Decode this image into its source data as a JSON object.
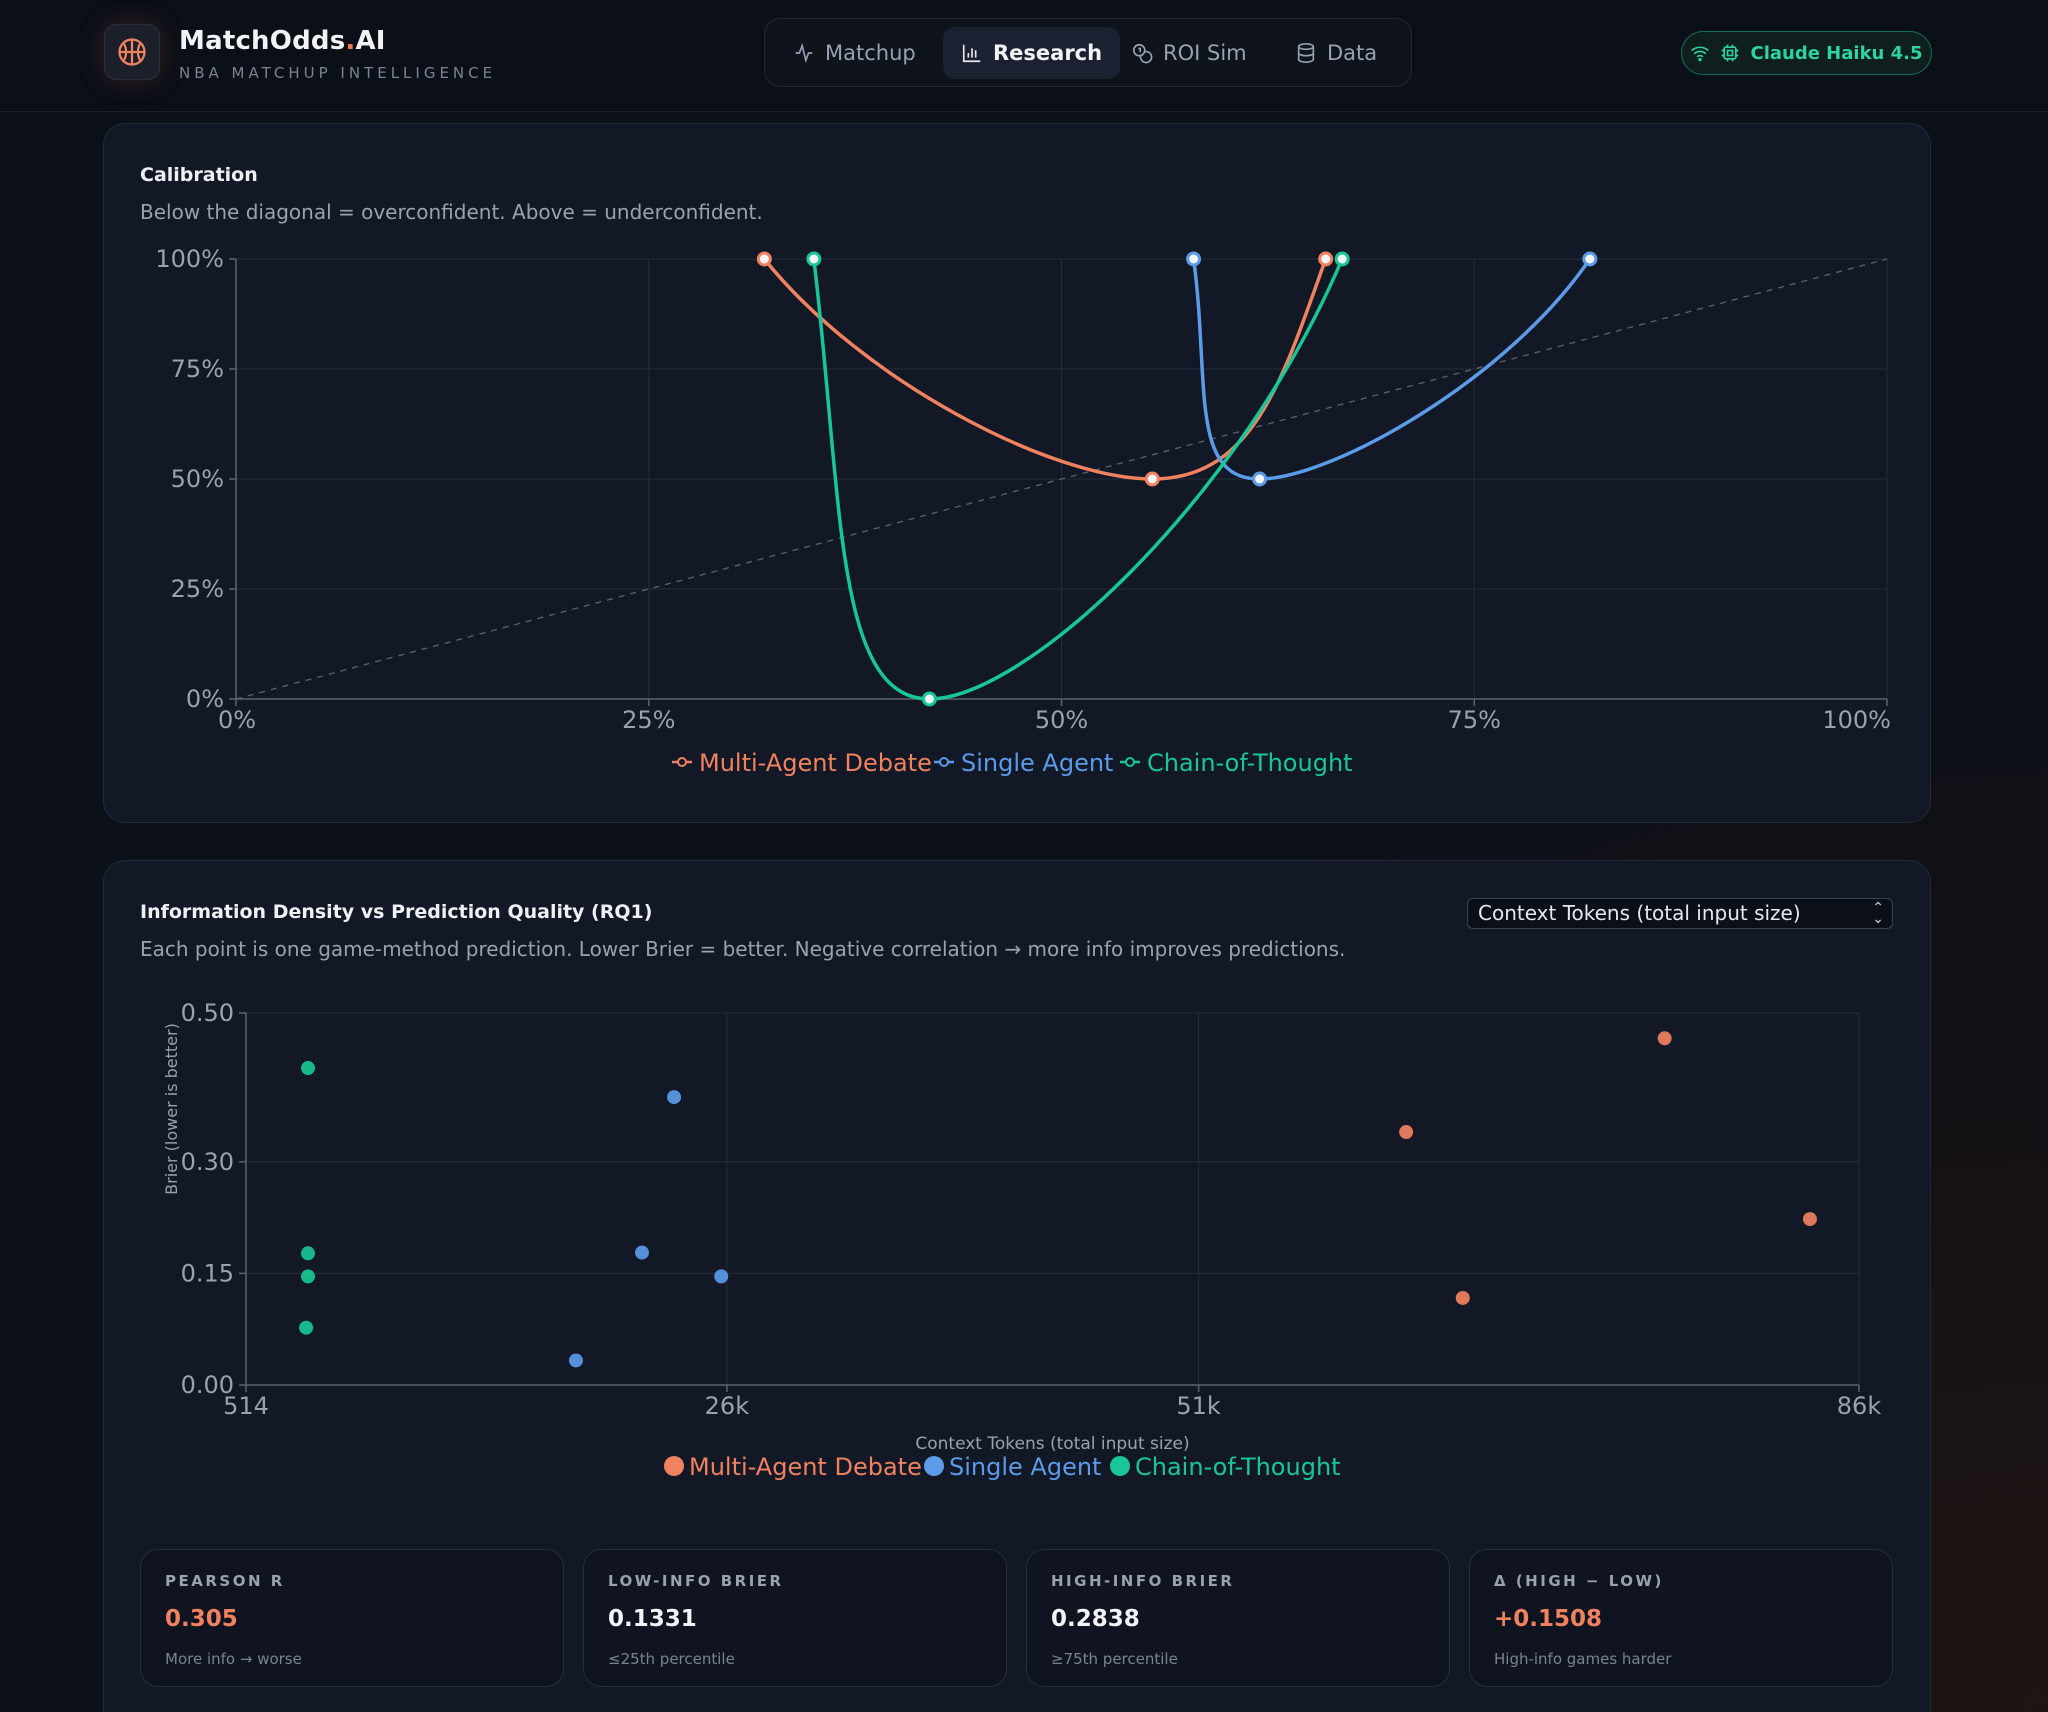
{
  "app": {
    "title_main": "MatchOdds",
    "title_dot": ".",
    "title_ai": "AI",
    "subtitle": "NBA MATCHUP INTELLIGENCE"
  },
  "nav": {
    "items": [
      {
        "label": "Matchup",
        "icon": "activity-icon",
        "active": false
      },
      {
        "label": "Research",
        "icon": "bar-chart-icon",
        "active": true
      },
      {
        "label": "ROI Sim",
        "icon": "coins-icon",
        "active": false
      },
      {
        "label": "Data",
        "icon": "database-icon",
        "active": false
      }
    ]
  },
  "model_badge": {
    "label": "Claude Haiku 4.5",
    "color": "#2ed3a4"
  },
  "colors": {
    "debate": "#f0825f",
    "single": "#5b9be8",
    "cot": "#19c796"
  },
  "calibration": {
    "title": "Calibration",
    "subtitle": "Below the diagonal = overconfident. Above = underconfident.",
    "chart_data": {
      "type": "line",
      "xlim": [
        0,
        100
      ],
      "ylim": [
        0,
        100
      ],
      "x_ticks": [
        "0%",
        "25%",
        "50%",
        "75%",
        "100%"
      ],
      "y_ticks": [
        "0%",
        "25%",
        "50%",
        "75%",
        "100%"
      ],
      "diagonal": true,
      "grid": true,
      "legend_position": "bottom-center",
      "series": [
        {
          "name": "Multi-Agent Debate",
          "color": "#f0825f",
          "points": [
            [
              32,
              100
            ],
            [
              55.5,
              50
            ],
            [
              66,
              100
            ]
          ]
        },
        {
          "name": "Single Agent",
          "color": "#5b9be8",
          "points": [
            [
              58,
              100
            ],
            [
              62,
              50
            ],
            [
              82,
              100
            ]
          ]
        },
        {
          "name": "Chain-of-Thought",
          "color": "#19c796",
          "points": [
            [
              35,
              100
            ],
            [
              42,
              0
            ],
            [
              67,
              100
            ]
          ]
        }
      ]
    }
  },
  "density": {
    "title": "Information Density vs Prediction Quality (RQ1)",
    "subtitle": "Each point is one game-method prediction. Lower Brier = better. Negative correlation → more info improves predictions.",
    "select_value": "Context Tokens (total input size)",
    "chart_data": {
      "type": "scatter",
      "xlabel": "Context Tokens (total input size)",
      "ylabel": "Brier (lower is better)",
      "xlim": [
        514,
        86000
      ],
      "ylim": [
        0,
        0.5
      ],
      "x_ticks": [
        {
          "v": 514,
          "label": "514"
        },
        {
          "v": 26000,
          "label": "26k"
        },
        {
          "v": 51000,
          "label": "51k"
        },
        {
          "v": 86000,
          "label": "86k"
        }
      ],
      "y_ticks": [
        {
          "v": 0,
          "label": "0.00"
        },
        {
          "v": 0.15,
          "label": "0.15"
        },
        {
          "v": 0.3,
          "label": "0.30"
        },
        {
          "v": 0.5,
          "label": "0.50"
        }
      ],
      "legend_position": "bottom-center",
      "series": [
        {
          "name": "Multi-Agent Debate",
          "color": "#f0825f",
          "points": [
            [
              62000,
              0.34
            ],
            [
              65000,
              0.117
            ],
            [
              75700,
              0.466
            ],
            [
              83400,
              0.223
            ]
          ]
        },
        {
          "name": "Single Agent",
          "color": "#5b9be8",
          "points": [
            [
              18000,
              0.033
            ],
            [
              21500,
              0.178
            ],
            [
              23200,
              0.387
            ],
            [
              25700,
              0.146
            ]
          ]
        },
        {
          "name": "Chain-of-Thought",
          "color": "#19c796",
          "points": [
            [
              3700,
              0.077
            ],
            [
              3800,
              0.146
            ],
            [
              3800,
              0.177
            ],
            [
              3800,
              0.426
            ]
          ]
        }
      ]
    }
  },
  "stats": [
    {
      "label": "PEARSON R",
      "value": "0.305",
      "note": "More info → worse",
      "accent": true
    },
    {
      "label": "LOW-INFO BRIER",
      "value": "0.1331",
      "note": "≤25th percentile",
      "accent": false
    },
    {
      "label": "HIGH-INFO BRIER",
      "value": "0.2838",
      "note": "≥75th percentile",
      "accent": false
    },
    {
      "label": "Δ (HIGH − LOW)",
      "value": "+0.1508",
      "note": "High-info games harder",
      "accent": true
    }
  ]
}
